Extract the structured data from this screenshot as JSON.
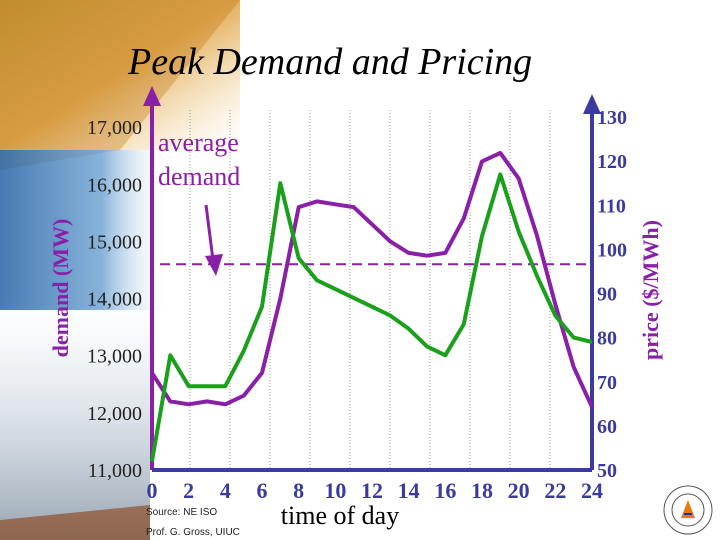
{
  "title": "Peak Demand and Pricing",
  "source_line1": "Source: NE ISO",
  "source_line2": "Prof. G. Gross, UIUC",
  "seal_text": "UNIVERSITY OF ILLINOIS",
  "colors": {
    "demand": "#8a1fa8",
    "price": "#1aa01a",
    "average": "#8a1fa8",
    "axis_left": "#8a1fa8",
    "axis_right": "#3a3aa0",
    "arrow": "#8a1fa8",
    "tick_left": "#222222",
    "tick_right": "#3a3aa0",
    "x_ticks": "#3a3aa0"
  },
  "chart_data": {
    "type": "line",
    "xlabel": "time of day",
    "ylabel_left": "demand (MW)",
    "ylabel_right": "price ($/MWh)",
    "x_ticks": [
      "0",
      "2",
      "4",
      "6",
      "8",
      "10",
      "12",
      "14",
      "16",
      "18",
      "20",
      "22",
      "24"
    ],
    "y_left_ticks": [
      "11,000",
      "12,000",
      "13,000",
      "14,000",
      "15,000",
      "16,000",
      "17,000"
    ],
    "y_right_ticks": [
      "50",
      "60",
      "70",
      "80",
      "90",
      "100",
      "110",
      "120",
      "130"
    ],
    "xlim": [
      0,
      24
    ],
    "ylim_left": [
      11000,
      17300
    ],
    "ylim_right": [
      50,
      130
    ],
    "annotation": {
      "line1": "average",
      "line2": "demand"
    },
    "average_demand": 14600,
    "series": [
      {
        "axis": "left",
        "x": [
          0,
          1,
          2,
          3,
          4,
          5,
          6,
          7,
          8,
          9,
          10,
          11,
          12,
          13,
          14,
          15,
          16,
          17,
          18,
          19,
          20,
          21,
          22,
          23,
          24
        ],
        "values": [
          12700,
          12200,
          12150,
          12200,
          12150,
          12300,
          12700,
          14000,
          15600,
          15700,
          15650,
          15600,
          15300,
          15000,
          14800,
          14750,
          14800,
          15400,
          16400,
          16550,
          16100,
          15100,
          13900,
          12800,
          12100
        ]
      },
      {
        "axis": "right",
        "x": [
          0,
          1,
          2,
          3,
          4,
          5,
          6,
          7,
          8,
          9,
          10,
          11,
          12,
          13,
          14,
          15,
          16,
          17,
          18,
          19,
          20,
          21,
          22,
          23,
          24
        ],
        "values": [
          52,
          76,
          69,
          69,
          69,
          77,
          87,
          115,
          98,
          93,
          91,
          89,
          87,
          85,
          82,
          78,
          76,
          83,
          103,
          117,
          104,
          94,
          85,
          80,
          79
        ]
      }
    ]
  }
}
